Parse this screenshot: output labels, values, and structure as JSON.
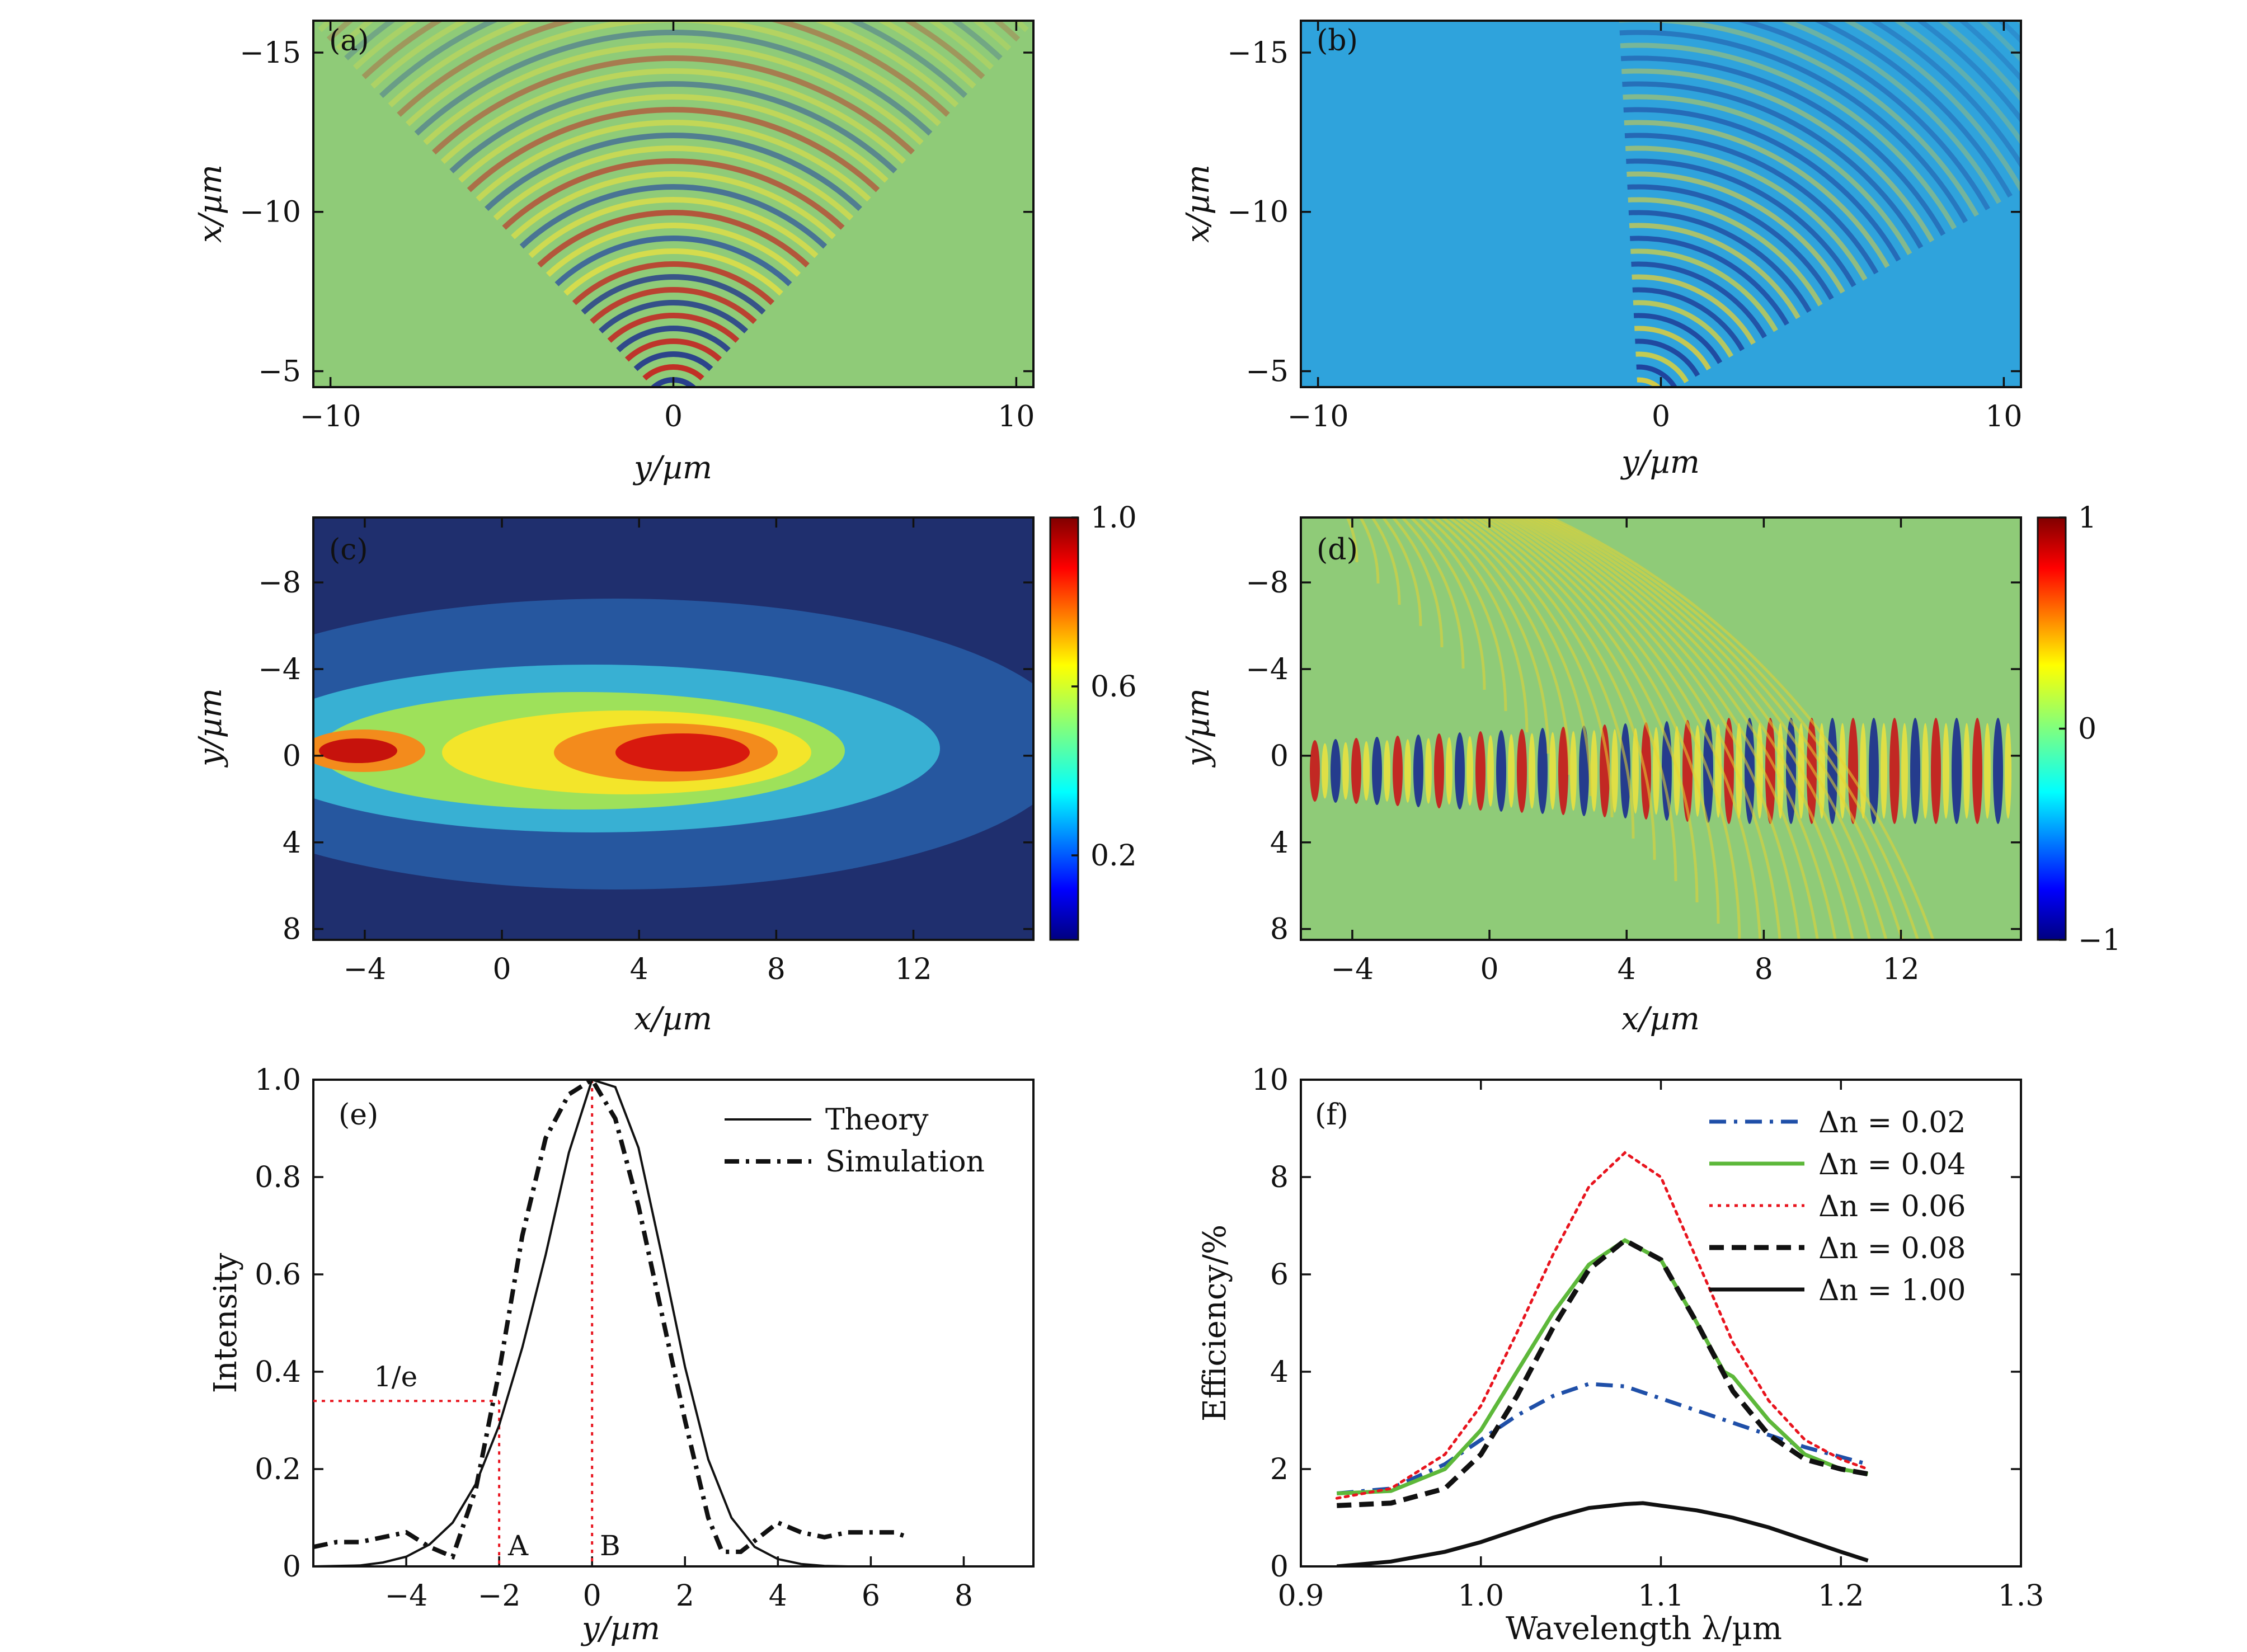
{
  "figure": {
    "panels": [
      {
        "id": "a",
        "label": "(a)",
        "xlabel": "y/µm",
        "ylabel": "x/µm",
        "xticks": [
          "−10",
          "0",
          "10"
        ],
        "yticks": [
          "−15",
          "−10",
          "−5"
        ]
      },
      {
        "id": "b",
        "label": "(b)",
        "xlabel": "y/µm",
        "ylabel": "x/µm",
        "xticks": [
          "−10",
          "0",
          "10"
        ],
        "yticks": [
          "−15",
          "−10",
          "−5"
        ]
      },
      {
        "id": "c",
        "label": "(c)",
        "xlabel": "x/µm",
        "ylabel": "y/µm",
        "xticks": [
          "−4",
          "0",
          "4",
          "8",
          "12"
        ],
        "yticks": [
          "−8",
          "−4",
          "0",
          "4",
          "8"
        ],
        "colorbar_ticks": [
          "1.0",
          "0.6",
          "0.2"
        ]
      },
      {
        "id": "d",
        "label": "(d)",
        "xlabel": "x/µm",
        "ylabel": "y/µm",
        "xticks": [
          "−4",
          "0",
          "4",
          "8",
          "12"
        ],
        "yticks": [
          "−8",
          "−4",
          "0",
          "4",
          "8"
        ],
        "colorbar_ticks": [
          "1",
          "0",
          "−1"
        ]
      },
      {
        "id": "e",
        "label": "(e)",
        "xlabel": "y/µm",
        "ylabel": "Intensity",
        "xticks": [
          "−4",
          "−2",
          "0",
          "2",
          "4",
          "6",
          "8"
        ],
        "yticks": [
          "0",
          "0.2",
          "0.4",
          "0.6",
          "0.8",
          "1.0"
        ],
        "annotations": {
          "one_over_e": "1/e",
          "A": "A",
          "B": "B"
        }
      },
      {
        "id": "f",
        "label": "(f)",
        "xlabel": "Wavelength λ/µm",
        "ylabel": "Efficiency/%",
        "xticks": [
          "0.9",
          "1.0",
          "1.1",
          "1.2",
          "1.3"
        ],
        "yticks": [
          "0",
          "2",
          "4",
          "6",
          "8",
          "10"
        ]
      }
    ]
  },
  "colors": {
    "a_background": "#8fcb78",
    "b_background": "#2fa3dc",
    "c_background": "#1f2f6e",
    "d_background": "#8fcb78",
    "series_002": "#1f4fa8",
    "series_004": "#5db83a",
    "series_006": "#e8141e",
    "series_008": "#111111",
    "series_100": "#111111"
  },
  "chart_data": [
    {
      "panel": "a",
      "type": "heatmap",
      "xlabel": "y/µm",
      "ylabel": "x/µm",
      "xlim": [
        -10.5,
        10.5
      ],
      "ylim": [
        -16,
        -4.5
      ],
      "value_range": [
        -1,
        1
      ]
    },
    {
      "panel": "b",
      "type": "heatmap",
      "xlabel": "y/µm",
      "ylabel": "x/µm",
      "xlim": [
        -10.5,
        10.5
      ],
      "ylim": [
        -16,
        -4.5
      ],
      "value_range": [
        -1,
        1
      ]
    },
    {
      "panel": "c",
      "type": "heatmap",
      "xlabel": "x/µm",
      "ylabel": "y/µm",
      "xlim": [
        -5.5,
        15.5
      ],
      "ylim": [
        -11,
        8.5
      ],
      "value_range": [
        0,
        1.0
      ],
      "colorbar_ticks": [
        1.0,
        0.6,
        0.2
      ]
    },
    {
      "panel": "d",
      "type": "heatmap",
      "xlabel": "x/µm",
      "ylabel": "y/µm",
      "xlim": [
        -5.5,
        15.5
      ],
      "ylim": [
        -11,
        8.5
      ],
      "value_range": [
        -1,
        1
      ],
      "colorbar_ticks": [
        1,
        0,
        -1
      ]
    },
    {
      "panel": "e",
      "type": "line",
      "xlabel": "y/µm",
      "ylabel": "Intensity",
      "xlim": [
        -6,
        9.5
      ],
      "ylim": [
        0,
        1.0
      ],
      "legend_position": "top-right",
      "series": [
        {
          "name": "Theory",
          "style": "solid",
          "x": [
            -6,
            -5,
            -4.5,
            -4,
            -3.5,
            -3,
            -2.5,
            -2,
            -1.5,
            -1,
            -0.5,
            0,
            0.5,
            1,
            1.5,
            2,
            2.5,
            3,
            3.5,
            4,
            4.5,
            5,
            5.5
          ],
          "y": [
            0,
            0.002,
            0.008,
            0.02,
            0.045,
            0.09,
            0.17,
            0.29,
            0.45,
            0.64,
            0.85,
            1.0,
            0.985,
            0.86,
            0.64,
            0.41,
            0.22,
            0.1,
            0.04,
            0.015,
            0.005,
            0.001,
            0
          ]
        },
        {
          "name": "Simulation",
          "style": "dash-dot",
          "x": [
            -6,
            -5.5,
            -5,
            -4.5,
            -4,
            -3.5,
            -3,
            -2.5,
            -2,
            -1.5,
            -1,
            -0.5,
            0,
            0.5,
            1,
            1.5,
            2,
            2.5,
            2.8,
            3.2,
            3.6,
            4,
            4.5,
            5,
            5.5,
            6,
            6.5,
            6.8
          ],
          "y": [
            0.04,
            0.05,
            0.05,
            0.06,
            0.07,
            0.04,
            0.02,
            0.16,
            0.4,
            0.68,
            0.88,
            0.97,
            1.0,
            0.92,
            0.74,
            0.52,
            0.3,
            0.1,
            0.03,
            0.03,
            0.06,
            0.09,
            0.07,
            0.06,
            0.07,
            0.07,
            0.07,
            0.06
          ]
        }
      ],
      "reference_lines": {
        "one_over_e_level": 0.34,
        "A_x": -2,
        "B_x": 0
      }
    },
    {
      "panel": "f",
      "type": "line",
      "xlabel": "Wavelength λ/µm",
      "ylabel": "Efficiency/%",
      "xlim": [
        0.9,
        1.3
      ],
      "ylim": [
        0,
        10
      ],
      "legend_position": "top-right",
      "series": [
        {
          "name": "Δn = 0.02",
          "style": "dash-dot",
          "x": [
            0.92,
            0.95,
            0.98,
            1.0,
            1.02,
            1.04,
            1.06,
            1.08,
            1.1,
            1.12,
            1.14,
            1.16,
            1.18,
            1.2,
            1.215
          ],
          "y": [
            1.5,
            1.6,
            2.1,
            2.6,
            3.1,
            3.5,
            3.75,
            3.7,
            3.45,
            3.2,
            2.95,
            2.7,
            2.45,
            2.25,
            2.1
          ]
        },
        {
          "name": "Δn = 0.04",
          "style": "solid",
          "x": [
            0.92,
            0.95,
            0.98,
            1.0,
            1.02,
            1.04,
            1.06,
            1.08,
            1.1,
            1.12,
            1.135,
            1.14,
            1.16,
            1.18,
            1.2,
            1.215
          ],
          "y": [
            1.5,
            1.55,
            2.0,
            2.8,
            4.0,
            5.2,
            6.2,
            6.7,
            6.3,
            5.0,
            4.0,
            3.9,
            3.0,
            2.3,
            2.0,
            1.9
          ]
        },
        {
          "name": "Δn = 0.06",
          "style": "dotted",
          "x": [
            0.92,
            0.95,
            0.98,
            1.0,
            1.02,
            1.04,
            1.06,
            1.08,
            1.1,
            1.12,
            1.14,
            1.16,
            1.18,
            1.2,
            1.215
          ],
          "y": [
            1.4,
            1.6,
            2.3,
            3.3,
            4.8,
            6.4,
            7.8,
            8.5,
            8.0,
            6.3,
            4.6,
            3.4,
            2.6,
            2.2,
            2.0
          ]
        },
        {
          "name": "Δn = 0.08",
          "style": "dashed",
          "x": [
            0.92,
            0.95,
            0.98,
            1.0,
            1.02,
            1.04,
            1.06,
            1.08,
            1.1,
            1.12,
            1.14,
            1.16,
            1.18,
            1.2,
            1.215
          ],
          "y": [
            1.25,
            1.3,
            1.6,
            2.3,
            3.5,
            4.9,
            6.1,
            6.7,
            6.3,
            5.0,
            3.6,
            2.7,
            2.2,
            2.0,
            1.9
          ]
        },
        {
          "name": "Δn = 1.00",
          "style": "solid",
          "x": [
            0.92,
            0.95,
            0.98,
            1.0,
            1.02,
            1.04,
            1.06,
            1.08,
            1.09,
            1.1,
            1.12,
            1.14,
            1.16,
            1.18,
            1.2,
            1.215
          ],
          "y": [
            0.0,
            0.1,
            0.3,
            0.5,
            0.75,
            1.0,
            1.2,
            1.28,
            1.3,
            1.25,
            1.15,
            1.0,
            0.8,
            0.55,
            0.3,
            0.12
          ]
        }
      ]
    }
  ]
}
